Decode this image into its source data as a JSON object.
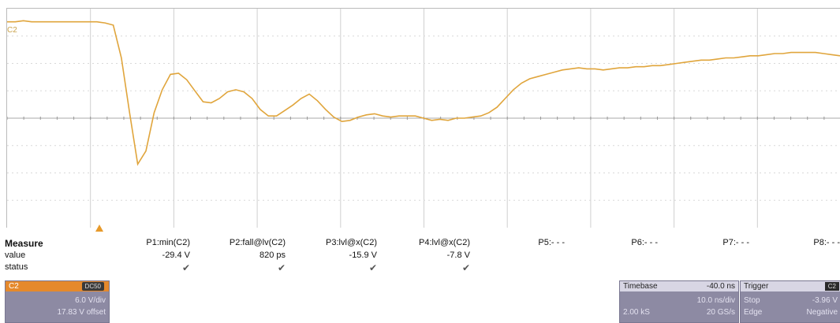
{
  "channel": {
    "label": "C2",
    "color": "#e0a53c"
  },
  "waveform": {
    "samples": [
      0.88,
      0.88,
      0.89,
      0.88,
      0.88,
      0.88,
      0.88,
      0.88,
      0.88,
      0.88,
      0.88,
      0.88,
      0.87,
      0.85,
      0.55,
      0.05,
      -0.42,
      -0.3,
      0.05,
      0.26,
      0.4,
      0.41,
      0.35,
      0.25,
      0.15,
      0.14,
      0.18,
      0.24,
      0.26,
      0.24,
      0.18,
      0.08,
      0.02,
      0.02,
      0.07,
      0.12,
      0.18,
      0.22,
      0.16,
      0.08,
      0.01,
      -0.03,
      -0.02,
      0.01,
      0.03,
      0.04,
      0.02,
      0.01,
      0.02,
      0.02,
      0.02,
      0.0,
      -0.02,
      -0.01,
      -0.02,
      0.0,
      0.0,
      0.01,
      0.02,
      0.05,
      0.1,
      0.18,
      0.26,
      0.32,
      0.36,
      0.38,
      0.4,
      0.42,
      0.44,
      0.45,
      0.46,
      0.45,
      0.45,
      0.44,
      0.45,
      0.46,
      0.46,
      0.47,
      0.47,
      0.48,
      0.48,
      0.49,
      0.5,
      0.51,
      0.52,
      0.53,
      0.53,
      0.54,
      0.55,
      0.55,
      0.56,
      0.57,
      0.57,
      0.58,
      0.59,
      0.59,
      0.6,
      0.6,
      0.6,
      0.6,
      0.59,
      0.58,
      0.57
    ]
  },
  "measure": {
    "title": "Measure",
    "row_value": "value",
    "row_status": "status",
    "params": [
      {
        "name": "P1:min(C2)",
        "value": "-29.4 V",
        "status": "✔"
      },
      {
        "name": "P2:fall@lv(C2)",
        "value": "820 ps",
        "status": "✔"
      },
      {
        "name": "P3:lvl@x(C2)",
        "value": "-15.9 V",
        "status": "✔"
      },
      {
        "name": "P4:lvl@x(C2)",
        "value": "-7.8 V",
        "status": "✔"
      },
      {
        "name": "P5:- - -",
        "value": "",
        "status": ""
      },
      {
        "name": "P6:- - -",
        "value": "",
        "status": ""
      },
      {
        "name": "P7:- - -",
        "value": "",
        "status": ""
      },
      {
        "name": "P8:- - -",
        "value": "",
        "status": ""
      }
    ]
  },
  "c2_box": {
    "label": "C2",
    "badge": "DC50",
    "vdiv": "6.0 V/div",
    "offset": "17.83 V offset"
  },
  "timebase": {
    "label": "Timebase",
    "delay": "-40.0 ns",
    "tdiv": "10.0 ns/div",
    "samples": "2.00 kS",
    "rate": "20 GS/s"
  },
  "trigger": {
    "label": "Trigger",
    "badge": "C2",
    "mode": "Stop",
    "level": "-3.96 V",
    "type": "Edge",
    "slope": "Negative"
  }
}
